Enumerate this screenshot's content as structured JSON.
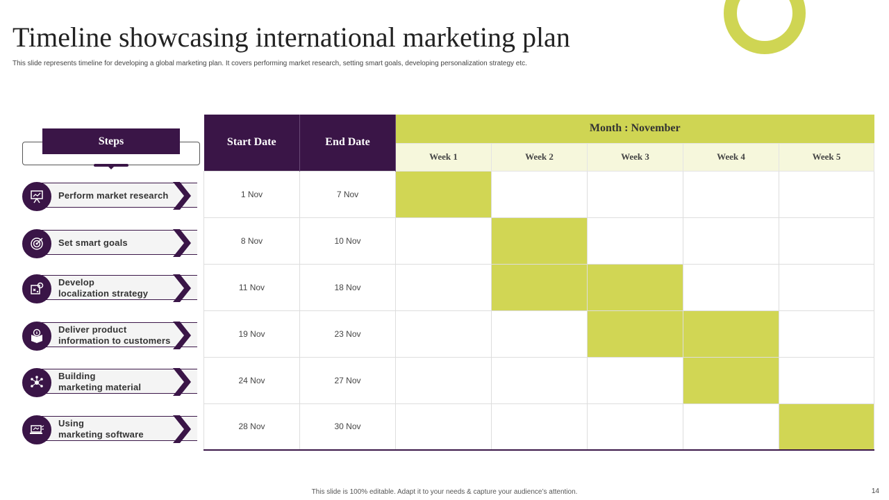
{
  "title": "Timeline showcasing international marketing plan",
  "subtitle": "This slide represents timeline for developing a global marketing plan. It covers performing market research, setting smart goals, developing personalization strategy etc.",
  "accent_colors": {
    "purple": "#3a1547",
    "lime": "#cfd553",
    "lime_light": "#f6f7dc"
  },
  "steps_header": "Steps",
  "steps": [
    {
      "line1": "Perform market research",
      "line2": "",
      "icon": "presentation-icon"
    },
    {
      "line1": "Set smart goals",
      "line2": "",
      "icon": "target-icon"
    },
    {
      "line1": "Develop",
      "line2": "localization strategy",
      "icon": "strategy-icon"
    },
    {
      "line1": "Deliver product",
      "line2": "information to customers",
      "icon": "product-box-icon"
    },
    {
      "line1": "Building",
      "line2": "marketing material",
      "icon": "network-icon"
    },
    {
      "line1": "Using",
      "line2": "marketing software",
      "icon": "laptop-icon"
    }
  ],
  "table": {
    "start_header": "Start Date",
    "end_header": "End Date",
    "month_header": "Month : November",
    "weeks": [
      "Week 1",
      "Week 2",
      "Week 3",
      "Week 4",
      "Week 5"
    ],
    "rows": [
      {
        "start": "1 Nov",
        "end": "7 Nov",
        "active_weeks": [
          1
        ]
      },
      {
        "start": "8 Nov",
        "end": "10 Nov",
        "active_weeks": [
          2
        ]
      },
      {
        "start": "11 Nov",
        "end": "18 Nov",
        "active_weeks": [
          2,
          3
        ]
      },
      {
        "start": "19 Nov",
        "end": "23 Nov",
        "active_weeks": [
          3,
          4
        ]
      },
      {
        "start": "24 Nov",
        "end": "27 Nov",
        "active_weeks": [
          4
        ]
      },
      {
        "start": "28 Nov",
        "end": "30 Nov",
        "active_weeks": [
          5
        ]
      }
    ]
  },
  "footer": "This slide is 100% editable. Adapt it to your needs & capture your audience’s attention.",
  "page_number": "14"
}
